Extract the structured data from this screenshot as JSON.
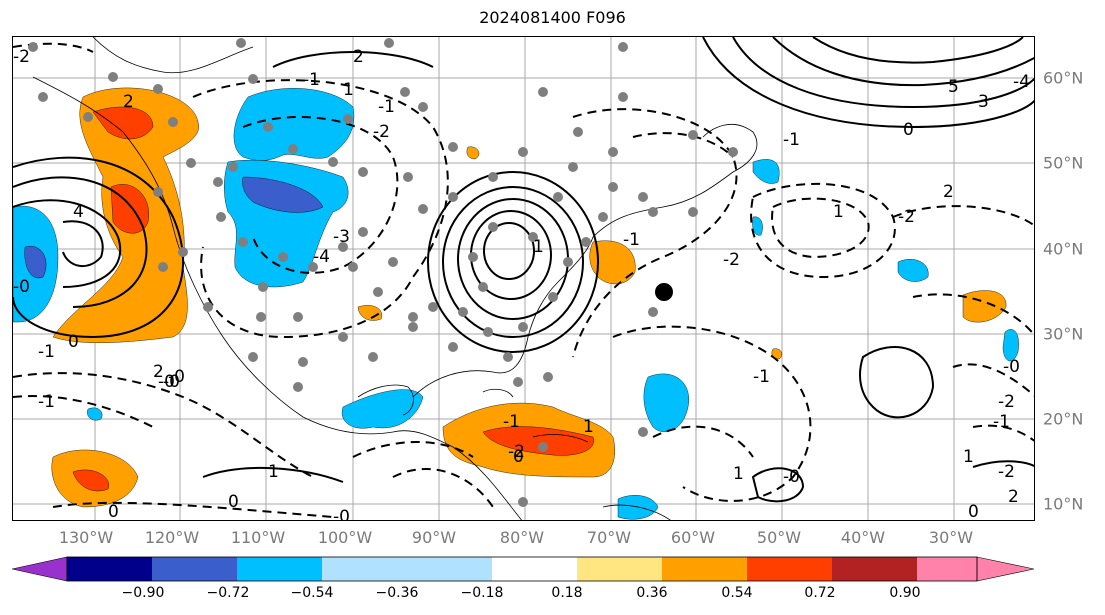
{
  "title": "2024081400 F096",
  "map": {
    "longitude_labels": [
      "130°W",
      "120°W",
      "110°W",
      "100°W",
      "90°W",
      "80°W",
      "70°W",
      "60°W",
      "50°W",
      "40°W",
      "30°W"
    ],
    "latitude_labels": [
      "60°N",
      "50°N",
      "40°N",
      "30°N",
      "20°N",
      "10°N"
    ],
    "grid": true,
    "contour_labels": [
      "-2",
      "2",
      "-1",
      "1",
      "0",
      "5",
      "-4",
      "3",
      "-1",
      "-2",
      "2",
      "-1",
      "-4",
      "-3",
      "4",
      "-2",
      "-1",
      "1",
      "-0",
      "0",
      "-1",
      "2",
      "-2",
      "-0",
      "-1",
      "1",
      "-2",
      "-0",
      "0",
      "-1",
      "1",
      "-2",
      "2",
      "1",
      "-0",
      "0",
      "-1",
      "0",
      "-0",
      "-1",
      "1",
      "-2",
      "2",
      "-0",
      "0",
      "1",
      "-0"
    ],
    "hurricane_marker": "filled-circle",
    "colors": {
      "positive_anomaly": "#ff9f00",
      "strong_positive": "#ff3f00",
      "negative_anomaly": "#00bfff",
      "strong_negative": "#3a5fcd",
      "stations": "#7f7f7f"
    }
  },
  "colorbar": {
    "ticks": [
      "−0.90",
      "−0.72",
      "−0.54",
      "−0.36",
      "−0.18",
      "0.18",
      "0.36",
      "0.54",
      "0.72",
      "0.90"
    ],
    "colors": [
      "#9932cc",
      "#00008b",
      "#3a5fcd",
      "#00bfff",
      "#b0e2ff",
      "#ffffff",
      "#ffe680",
      "#ff9f00",
      "#ff3f00",
      "#b22222",
      "#ff82ab"
    ],
    "extend": "both"
  }
}
